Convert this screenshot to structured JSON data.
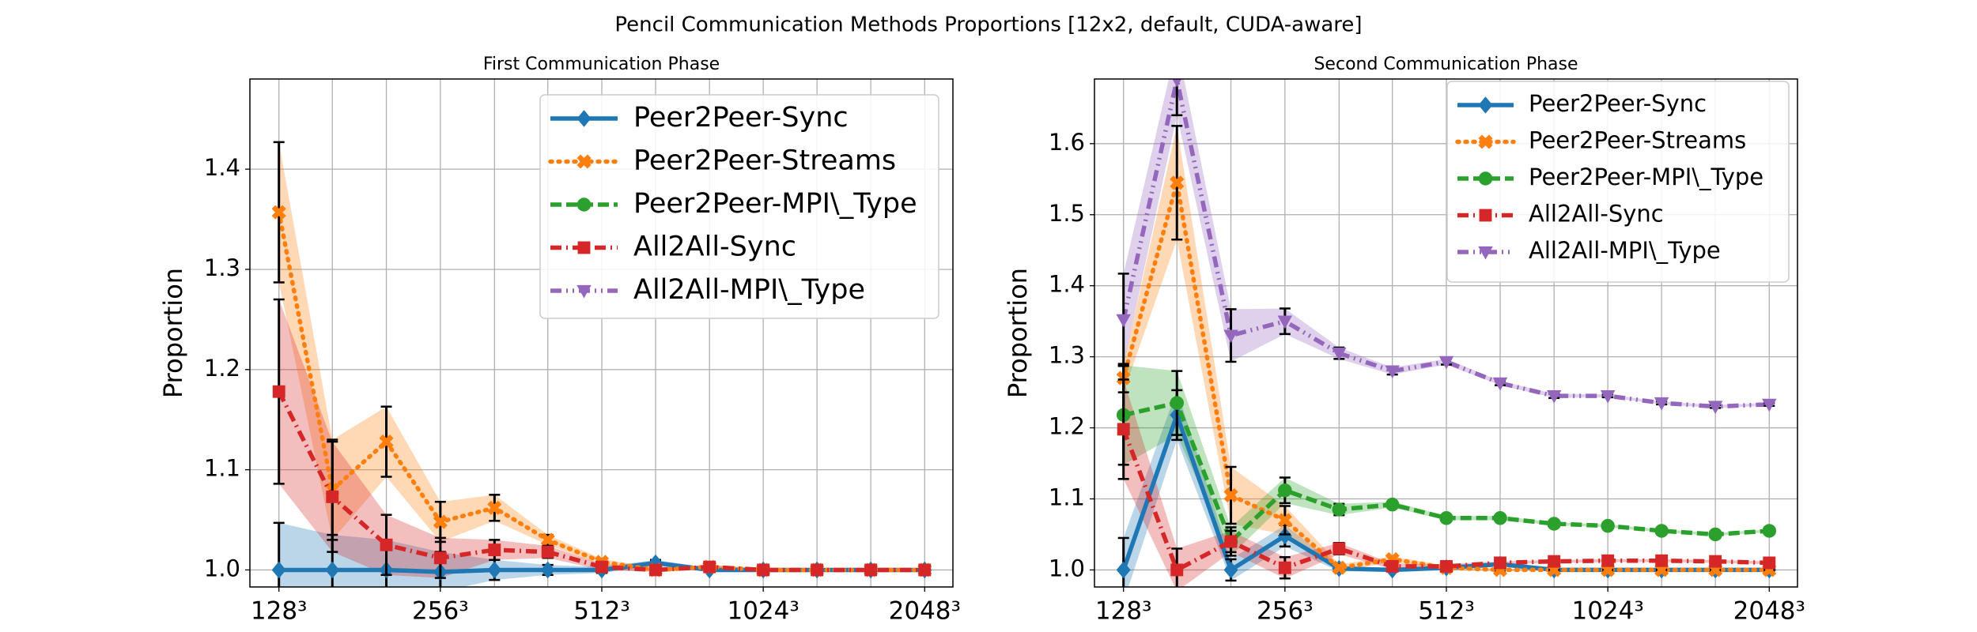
{
  "title": "Pencil Communication Methods Proportions [12x2, default, CUDA-aware]",
  "chart_data": [
    {
      "type": "line",
      "title": "First Communication Phase",
      "y_label": "Proportion",
      "x": [
        128,
        161,
        203,
        256,
        323,
        406,
        512,
        645,
        813,
        1024,
        1290,
        1625,
        2048
      ],
      "xscale": "log",
      "xlim": [
        113,
        2312
      ],
      "xticks": [
        {
          "value": 128,
          "label": "128³"
        },
        {
          "value": 256,
          "label": "256³"
        },
        {
          "value": 512,
          "label": "512³"
        },
        {
          "value": 1024,
          "label": "1024³"
        },
        {
          "value": 2048,
          "label": "2048³"
        }
      ],
      "ylim": [
        0.983,
        1.49
      ],
      "yticks": [
        {
          "value": 1,
          "label": "1.0"
        },
        1.1,
        1.2,
        1.3,
        1.4
      ],
      "grid": true,
      "legend": "upper right",
      "series": [
        {
          "name": "Peer2Peer-Sync",
          "color": "#1f77b4",
          "marker": "diamond",
          "linestyle": "solid",
          "values": [
            1.0,
            1.0,
            1.0,
            0.998,
            1.0,
            1.0,
            1.0,
            1.007,
            1.0,
            1.0,
            1.0,
            1.0,
            1.0
          ],
          "errors": [
            0.047,
            0.035,
            0.03,
            0.02,
            0.01,
            0.005,
            0.003,
            0.003,
            0.002,
            0.002,
            0.002,
            0.002,
            0.002
          ]
        },
        {
          "name": "Peer2Peer-Streams",
          "color": "#ff7f0e",
          "marker": "x",
          "linestyle": "dotted",
          "values": [
            1.357,
            1.08,
            1.128,
            1.048,
            1.062,
            1.03,
            1.008,
            1.0,
            1.003,
            1.0,
            1.0,
            1.0,
            1.0
          ],
          "errors": [
            0.07,
            0.05,
            0.035,
            0.02,
            0.013,
            0.005,
            0.003,
            0.002,
            0.002,
            0.002,
            0.001,
            0.001,
            0.001
          ]
        },
        {
          "name": "Peer2Peer-MPI\\_Type",
          "color": "#2ca02c",
          "marker": "circle",
          "linestyle": "dashed",
          "values": [
            null,
            null,
            null,
            null,
            null,
            null,
            null,
            null,
            null,
            null,
            null,
            null,
            null
          ],
          "errors": [
            null,
            null,
            null,
            null,
            null,
            null,
            null,
            null,
            null,
            null,
            null,
            null,
            null
          ]
        },
        {
          "name": "All2All-Sync",
          "color": "#d62728",
          "marker": "square",
          "linestyle": "dashdot",
          "values": [
            1.178,
            1.073,
            1.025,
            1.012,
            1.02,
            1.018,
            1.003,
            1.0,
            1.003,
            1.0,
            1.0,
            1.0,
            1.0
          ],
          "errors": [
            0.092,
            0.055,
            0.03,
            0.02,
            0.01,
            0.006,
            0.003,
            0.002,
            0.002,
            0.001,
            0.001,
            0.001,
            0.001
          ]
        },
        {
          "name": "All2All-MPI\\_Type",
          "color": "#9467bd",
          "marker": "triangle-down",
          "linestyle": "dashdotdot",
          "values": [
            null,
            null,
            null,
            null,
            null,
            null,
            null,
            null,
            null,
            null,
            null,
            null,
            null
          ],
          "errors": [
            null,
            null,
            null,
            null,
            null,
            null,
            null,
            null,
            null,
            null,
            null,
            null,
            null
          ]
        }
      ]
    },
    {
      "type": "line",
      "title": "Second Communication Phase",
      "y_label": "Proportion",
      "x": [
        128,
        161,
        203,
        256,
        323,
        406,
        512,
        645,
        813,
        1024,
        1290,
        1625,
        2048
      ],
      "xscale": "log",
      "xlim": [
        113,
        2312
      ],
      "xticks": [
        {
          "value": 128,
          "label": "128³"
        },
        {
          "value": 256,
          "label": "256³"
        },
        {
          "value": 512,
          "label": "512³"
        },
        {
          "value": 1024,
          "label": "1024³"
        },
        {
          "value": 2048,
          "label": "2048³"
        }
      ],
      "ylim": [
        0.976,
        1.691
      ],
      "yticks": [
        {
          "value": 1,
          "label": "1.0"
        },
        1.1,
        1.2,
        1.3,
        1.4,
        1.5,
        1.6
      ],
      "grid": true,
      "legend": "upper right",
      "series": [
        {
          "name": "Peer2Peer-Sync",
          "color": "#1f77b4",
          "marker": "diamond",
          "linestyle": "solid",
          "values": [
            1.0,
            1.218,
            1.0,
            1.048,
            1.002,
            1.0,
            1.003,
            1.008,
            1.0,
            1.0,
            1.0,
            1.0,
            1.0
          ],
          "errors": [
            0.045,
            0.035,
            0.015,
            0.015,
            0.004,
            0.002,
            0.002,
            0.002,
            0.001,
            0.001,
            0.001,
            0.001,
            0.001
          ]
        },
        {
          "name": "Peer2Peer-Streams",
          "color": "#ff7f0e",
          "marker": "x",
          "linestyle": "dotted",
          "values": [
            1.27,
            1.545,
            1.105,
            1.07,
            1.003,
            1.015,
            1.003,
            1.0,
            1.0,
            1.0,
            1.0,
            1.0,
            1.0
          ],
          "errors": [
            0.02,
            0.08,
            0.04,
            0.02,
            0.005,
            0.004,
            0.003,
            0.002,
            0.001,
            0.001,
            0.001,
            0.001,
            0.001
          ]
        },
        {
          "name": "Peer2Peer-MPI\\_Type",
          "color": "#2ca02c",
          "marker": "circle",
          "linestyle": "dashed",
          "values": [
            1.218,
            1.235,
            1.04,
            1.112,
            1.085,
            1.092,
            1.073,
            1.073,
            1.065,
            1.062,
            1.055,
            1.05,
            1.055
          ],
          "errors": [
            0.07,
            0.045,
            0.02,
            0.018,
            0.008,
            0.004,
            0.003,
            0.003,
            0.002,
            0.002,
            0.002,
            0.002,
            0.002
          ]
        },
        {
          "name": "All2All-Sync",
          "color": "#d62728",
          "marker": "square",
          "linestyle": "dashdot",
          "values": [
            1.198,
            1.0,
            1.04,
            1.003,
            1.03,
            1.005,
            1.005,
            1.01,
            1.012,
            1.013,
            1.013,
            1.012,
            1.01
          ],
          "errors": [
            0.07,
            0.03,
            0.015,
            0.015,
            0.008,
            0.004,
            0.003,
            0.002,
            0.002,
            0.002,
            0.002,
            0.002,
            0.002
          ]
        },
        {
          "name": "All2All-MPI\\_Type",
          "color": "#9467bd",
          "marker": "triangle-down",
          "linestyle": "dashdotdot",
          "values": [
            1.352,
            1.69,
            1.33,
            1.35,
            1.305,
            1.28,
            1.293,
            1.263,
            1.245,
            1.245,
            1.235,
            1.23,
            1.233
          ],
          "errors": [
            0.065,
            0.05,
            0.037,
            0.018,
            0.008,
            0.005,
            0.004,
            0.003,
            0.003,
            0.002,
            0.002,
            0.002,
            0.002
          ]
        }
      ]
    }
  ]
}
